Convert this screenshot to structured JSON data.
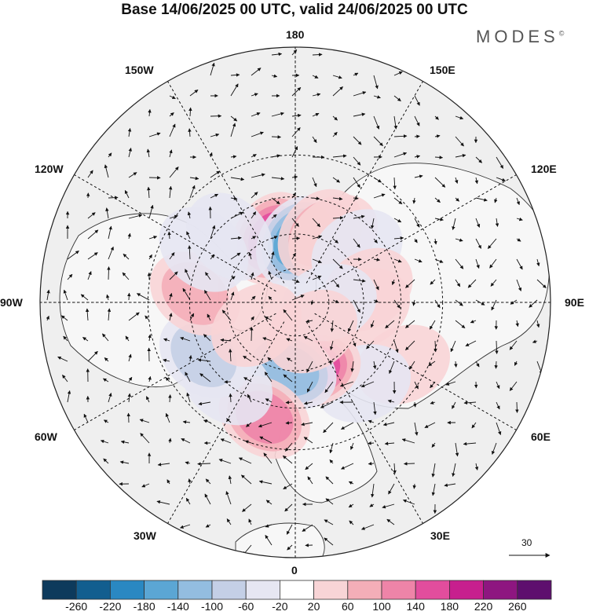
{
  "title": "Base 14/06/2025 00 UTC, valid 24/06/2025 00 UTC",
  "brand": {
    "name": "MODES",
    "mark": "©"
  },
  "longitude_labels": {
    "lon_180": "180",
    "lon_150e": "150E",
    "lon_120e": "120E",
    "lon_90e": "90E",
    "lon_60e": "60E",
    "lon_30e": "30E",
    "lon_0": "0",
    "lon_30w": "30W",
    "lon_60w": "60W",
    "lon_90w": "90W",
    "lon_120w": "120W",
    "lon_150w": "150W"
  },
  "vector_reference": {
    "value": "30"
  },
  "colorbar": {
    "colors": [
      "#0d3a5c",
      "#125e8f",
      "#2a88c2",
      "#5ba6d4",
      "#93bde0",
      "#c4cfe6",
      "#e6e6f2",
      "#ffffff",
      "#f8d4d6",
      "#f4aeb8",
      "#ee84a8",
      "#e24d9d",
      "#c71f8e",
      "#8e1680",
      "#5e0f6e"
    ],
    "labels": [
      "-260",
      "-220",
      "-180",
      "-140",
      "-100",
      "-60",
      "-20",
      "20",
      "60",
      "100",
      "140",
      "180",
      "220",
      "260"
    ]
  },
  "anomaly_field": {
    "blobs": [
      {
        "lon": 200,
        "lat": 60,
        "value": 150
      },
      {
        "lon": 178,
        "lat": 63,
        "value": -150
      },
      {
        "lon": 160,
        "lat": 58,
        "value": 70
      },
      {
        "lon": 150,
        "lat": 57,
        "value": 50
      },
      {
        "lon": 130,
        "lat": 55,
        "value": -60
      },
      {
        "lon": 100,
        "lat": 58,
        "value": 40
      },
      {
        "lon": 85,
        "lat": 60,
        "value": 40
      },
      {
        "lon": 60,
        "lat": 38,
        "value": 50
      },
      {
        "lon": 40,
        "lat": 45,
        "value": -60
      },
      {
        "lon": 15,
        "lat": 60,
        "value": 150
      },
      {
        "lon": 355,
        "lat": 60,
        "value": -140
      },
      {
        "lon": 345,
        "lat": 40,
        "value": 120
      },
      {
        "lon": 320,
        "lat": 45,
        "value": -60
      },
      {
        "lon": 300,
        "lat": 45,
        "value": -90
      },
      {
        "lon": 265,
        "lat": 47,
        "value": 80
      },
      {
        "lon": 240,
        "lat": 45,
        "value": -60
      },
      {
        "lon": 225,
        "lat": 50,
        "value": -60
      },
      {
        "lon": 90,
        "lat": 75,
        "value": -40
      },
      {
        "lon": 30,
        "lat": 75,
        "value": 40
      },
      {
        "lon": 300,
        "lat": 70,
        "value": 40
      }
    ]
  }
}
